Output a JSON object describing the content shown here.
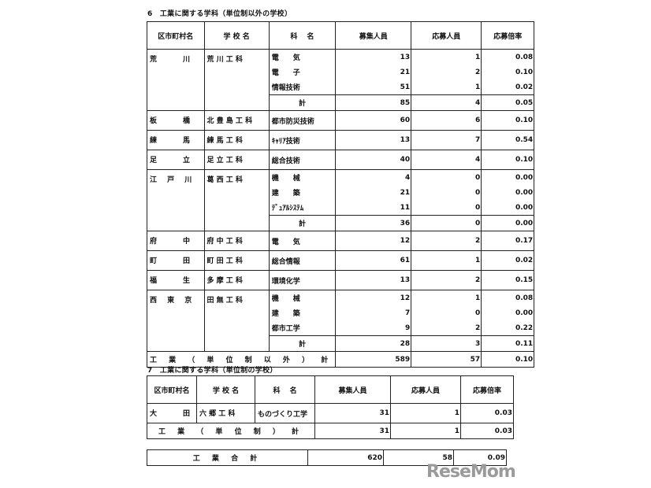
{
  "headers": [
    "区市町村名",
    "学 校 名",
    "科　 名",
    "募集人員",
    "応募人員",
    "応募倍率"
  ],
  "section6": {
    "title": "6　工業に関する学科（単位制以外の学校）",
    "groups": [
      {
        "district": "荒　　川",
        "school": "荒 川 工 科",
        "rows": [
          {
            "dept": "電　　気",
            "quota": "13",
            "applicants": "1",
            "ratio": "0.08"
          },
          {
            "dept": "電　　子",
            "quota": "21",
            "applicants": "2",
            "ratio": "0.10"
          },
          {
            "dept": "情報技術",
            "quota": "51",
            "applicants": "1",
            "ratio": "0.02"
          }
        ],
        "subtotal": {
          "label": "計",
          "quota": "85",
          "applicants": "4",
          "ratio": "0.05"
        }
      },
      {
        "district": "板　　橋",
        "school": "北 豊 島 工 科",
        "rows": [
          {
            "dept": "都市防災技術",
            "quota": "60",
            "applicants": "6",
            "ratio": "0.10"
          }
        ]
      },
      {
        "district": "練　　馬",
        "school": "練 馬 工 科",
        "rows": [
          {
            "dept": "ｷｬﾘｱ技術",
            "quota": "13",
            "applicants": "7",
            "ratio": "0.54"
          }
        ]
      },
      {
        "district": "足　　立",
        "school": "足 立 工 科",
        "rows": [
          {
            "dept": "総合技術",
            "quota": "40",
            "applicants": "4",
            "ratio": "0.10"
          }
        ]
      },
      {
        "district": "江 戸 川",
        "school": "葛 西 工 科",
        "rows": [
          {
            "dept": "機　　械",
            "quota": "4",
            "applicants": "0",
            "ratio": "0.00"
          },
          {
            "dept": "建　　築",
            "quota": "21",
            "applicants": "0",
            "ratio": "0.00"
          },
          {
            "dept": "ﾃﾞｭｱﾙｼｽﾃﾑ",
            "quota": "11",
            "applicants": "0",
            "ratio": "0.00"
          }
        ],
        "subtotal": {
          "label": "計",
          "quota": "36",
          "applicants": "0",
          "ratio": "0.00"
        }
      },
      {
        "district": "府　　中",
        "school": "府 中 工 科",
        "rows": [
          {
            "dept": "電　　気",
            "quota": "12",
            "applicants": "2",
            "ratio": "0.17"
          }
        ]
      },
      {
        "district": "町　　田",
        "school": "町 田 工 科",
        "rows": [
          {
            "dept": "総合情報",
            "quota": "61",
            "applicants": "1",
            "ratio": "0.02"
          }
        ]
      },
      {
        "district": "福　　生",
        "school": "多 摩 工 科",
        "rows": [
          {
            "dept": "環境化学",
            "quota": "13",
            "applicants": "2",
            "ratio": "0.15"
          }
        ]
      },
      {
        "district": "西 東 京",
        "school": "田 無 工 科",
        "rows": [
          {
            "dept": "機　　械",
            "quota": "12",
            "applicants": "1",
            "ratio": "0.08"
          },
          {
            "dept": "建　　築",
            "quota": "7",
            "applicants": "0",
            "ratio": "0.00"
          },
          {
            "dept": "都市工学",
            "quota": "9",
            "applicants": "2",
            "ratio": "0.22"
          }
        ],
        "subtotal": {
          "label": "計",
          "quota": "28",
          "applicants": "3",
          "ratio": "0.11"
        }
      }
    ],
    "total": {
      "label": "工 業 （ 単 位 制 以 外 ） 計",
      "quota": "589",
      "applicants": "57",
      "ratio": "0.10"
    }
  },
  "section7": {
    "title": "7　工業に関する学科（単位制の学校）",
    "groups": [
      {
        "district": "大　　田",
        "school": "六 郷 工 科",
        "rows": [
          {
            "dept": "ものづくり工学",
            "quota": "31",
            "applicants": "1",
            "ratio": "0.03"
          }
        ]
      }
    ],
    "total": {
      "label": "工 業 （ 単 位 制 ） 計",
      "quota": "31",
      "applicants": "1",
      "ratio": "0.03"
    }
  },
  "grand_total": {
    "label": "工 業 合 計",
    "quota": "620",
    "applicants": "58",
    "ratio": "0.09"
  },
  "watermark": "ReseMom"
}
